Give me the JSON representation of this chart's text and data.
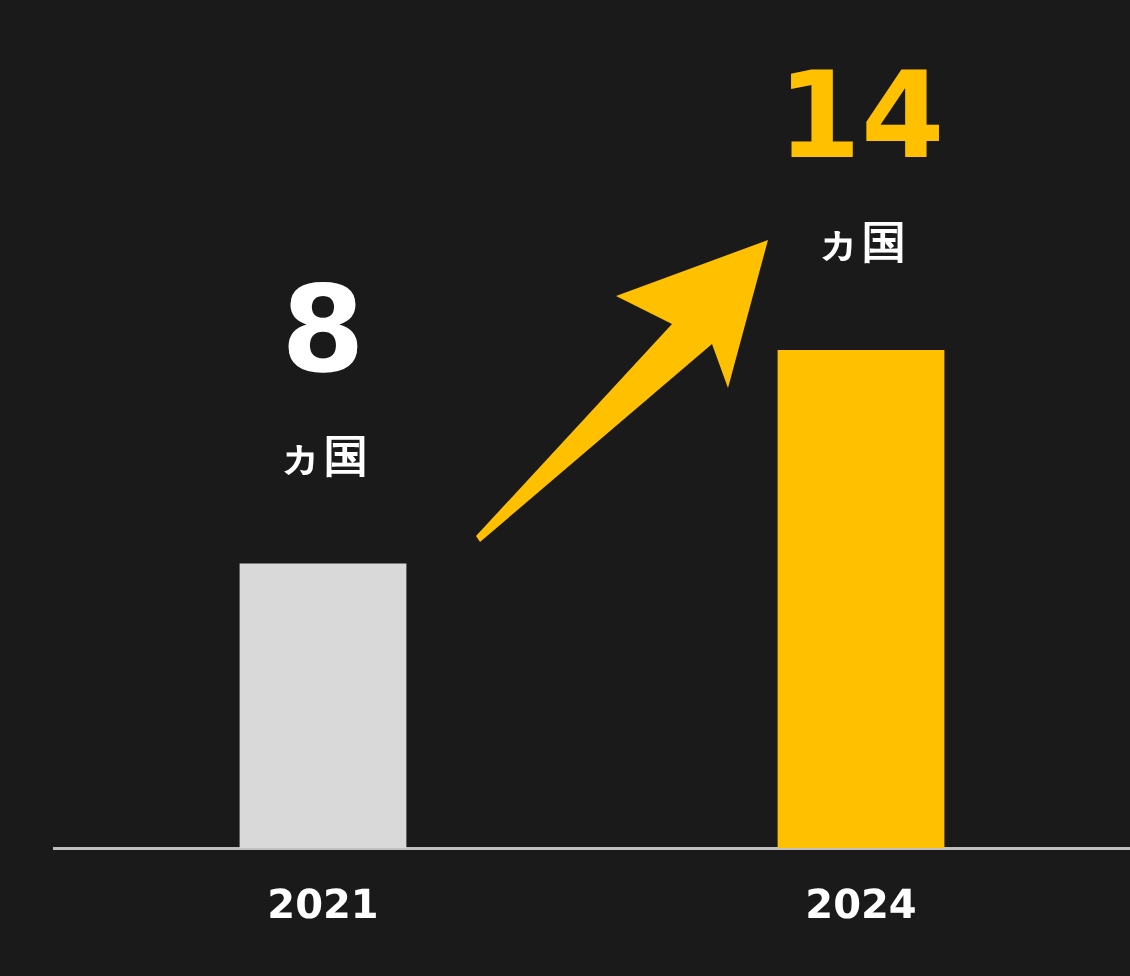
{
  "chart_data": {
    "type": "bar",
    "categories": [
      "2021",
      "2024"
    ],
    "values": [
      8,
      14
    ],
    "colors": [
      "#d9d9d9",
      "#ffc000"
    ],
    "data_labels": true,
    "annotations": [
      {
        "text": "ヵ国",
        "x": "2021",
        "y": 8
      },
      {
        "text": "ヵ国",
        "x": "2024",
        "y": 14
      }
    ],
    "tick_labels": "x"
  }
}
